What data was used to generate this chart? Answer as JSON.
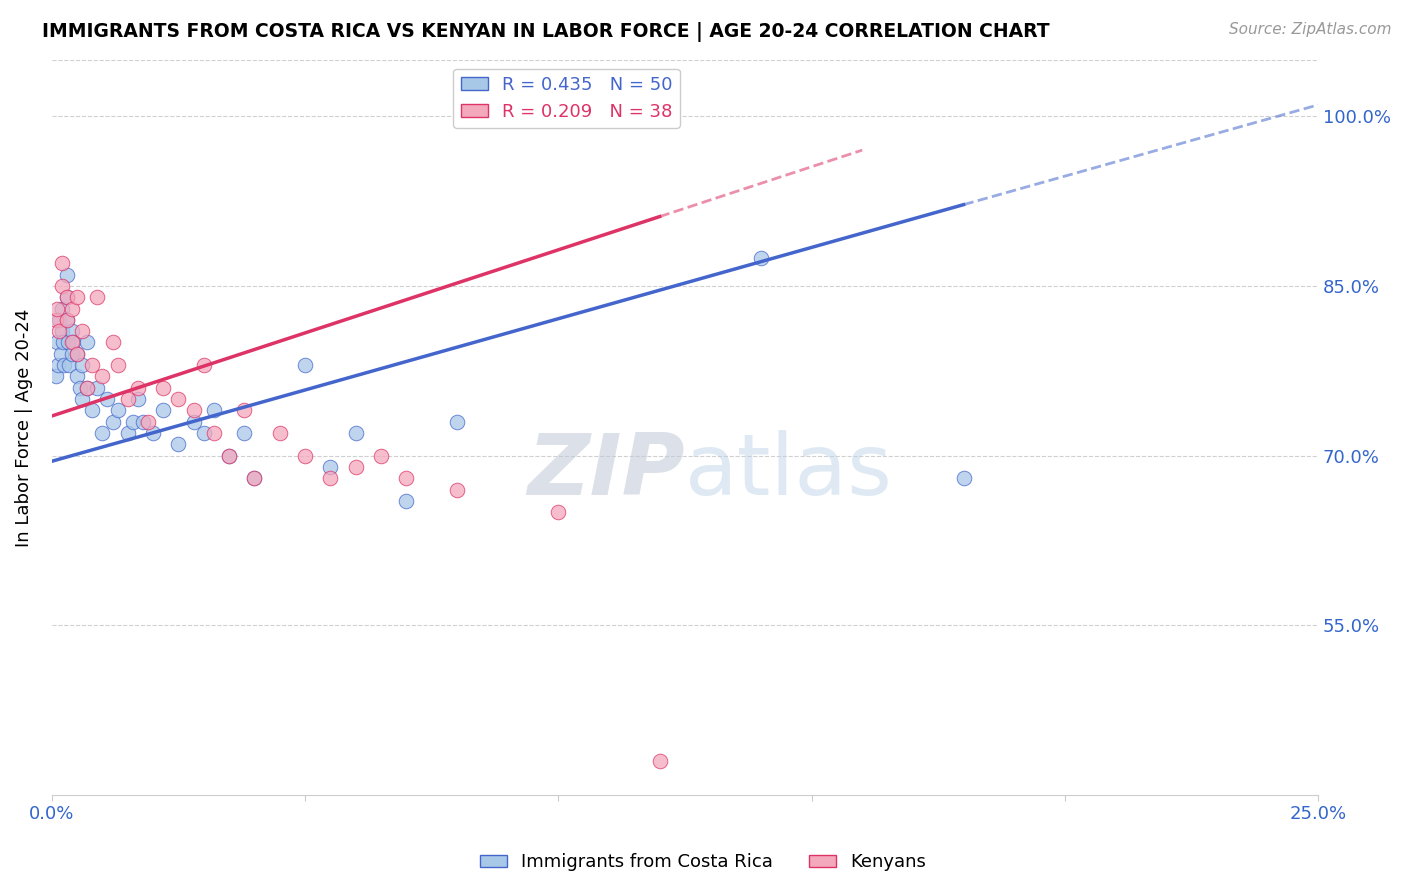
{
  "title": "IMMIGRANTS FROM COSTA RICA VS KENYAN IN LABOR FORCE | AGE 20-24 CORRELATION CHART",
  "source": "Source: ZipAtlas.com",
  "ylabel": "In Labor Force | Age 20-24",
  "xlim": [
    0.0,
    0.25
  ],
  "ylim": [
    0.4,
    1.05
  ],
  "yticks_right": [
    0.55,
    0.7,
    0.85,
    1.0
  ],
  "ytick_labels_right": [
    "55.0%",
    "70.0%",
    "85.0%",
    "100.0%"
  ],
  "costa_rica_color": "#a8c8e8",
  "kenya_color": "#f4a8bc",
  "costa_rica_line_color": "#4466cc",
  "kenya_line_color": "#dd3366",
  "legend_label_cr": "R = 0.435   N = 50",
  "legend_label_ke": "R = 0.209   N = 38",
  "legend_label_cr_short": "Immigrants from Costa Rica",
  "legend_label_ke_short": "Kenyans",
  "watermark_zip": "ZIP",
  "watermark_atlas": "atlas",
  "background_color": "#ffffff",
  "grid_color": "#d0d0d0",
  "costa_rica_x": [
    0.0008,
    0.001,
    0.0012,
    0.0015,
    0.0018,
    0.002,
    0.002,
    0.0022,
    0.0025,
    0.003,
    0.003,
    0.003,
    0.0032,
    0.0035,
    0.004,
    0.004,
    0.0042,
    0.005,
    0.005,
    0.0055,
    0.006,
    0.006,
    0.007,
    0.007,
    0.008,
    0.009,
    0.01,
    0.011,
    0.012,
    0.013,
    0.015,
    0.016,
    0.017,
    0.018,
    0.02,
    0.022,
    0.025,
    0.028,
    0.03,
    0.032,
    0.035,
    0.038,
    0.04,
    0.05,
    0.055,
    0.06,
    0.07,
    0.08,
    0.14,
    0.18
  ],
  "costa_rica_y": [
    0.77,
    0.8,
    0.78,
    0.82,
    0.79,
    0.81,
    0.83,
    0.8,
    0.78,
    0.84,
    0.82,
    0.86,
    0.8,
    0.78,
    0.79,
    0.81,
    0.8,
    0.77,
    0.79,
    0.76,
    0.75,
    0.78,
    0.76,
    0.8,
    0.74,
    0.76,
    0.72,
    0.75,
    0.73,
    0.74,
    0.72,
    0.73,
    0.75,
    0.73,
    0.72,
    0.74,
    0.71,
    0.73,
    0.72,
    0.74,
    0.7,
    0.72,
    0.68,
    0.78,
    0.69,
    0.72,
    0.66,
    0.73,
    0.875,
    0.68
  ],
  "kenya_x": [
    0.0008,
    0.001,
    0.0015,
    0.002,
    0.002,
    0.003,
    0.003,
    0.004,
    0.004,
    0.005,
    0.005,
    0.006,
    0.007,
    0.008,
    0.009,
    0.01,
    0.012,
    0.013,
    0.015,
    0.017,
    0.019,
    0.022,
    0.025,
    0.028,
    0.03,
    0.032,
    0.035,
    0.038,
    0.04,
    0.045,
    0.05,
    0.055,
    0.06,
    0.065,
    0.07,
    0.08,
    0.1,
    0.12
  ],
  "kenya_y": [
    0.82,
    0.83,
    0.81,
    0.85,
    0.87,
    0.82,
    0.84,
    0.8,
    0.83,
    0.84,
    0.79,
    0.81,
    0.76,
    0.78,
    0.84,
    0.77,
    0.8,
    0.78,
    0.75,
    0.76,
    0.73,
    0.76,
    0.75,
    0.74,
    0.78,
    0.72,
    0.7,
    0.74,
    0.68,
    0.72,
    0.7,
    0.68,
    0.69,
    0.7,
    0.68,
    0.67,
    0.65,
    0.43
  ],
  "cr_trend_x0": 0.0,
  "cr_trend_y0": 0.695,
  "cr_trend_x1": 0.25,
  "cr_trend_y1": 1.01,
  "ke_trend_x0": 0.0,
  "ke_trend_y0": 0.735,
  "ke_trend_x1": 0.16,
  "ke_trend_y1": 0.97
}
